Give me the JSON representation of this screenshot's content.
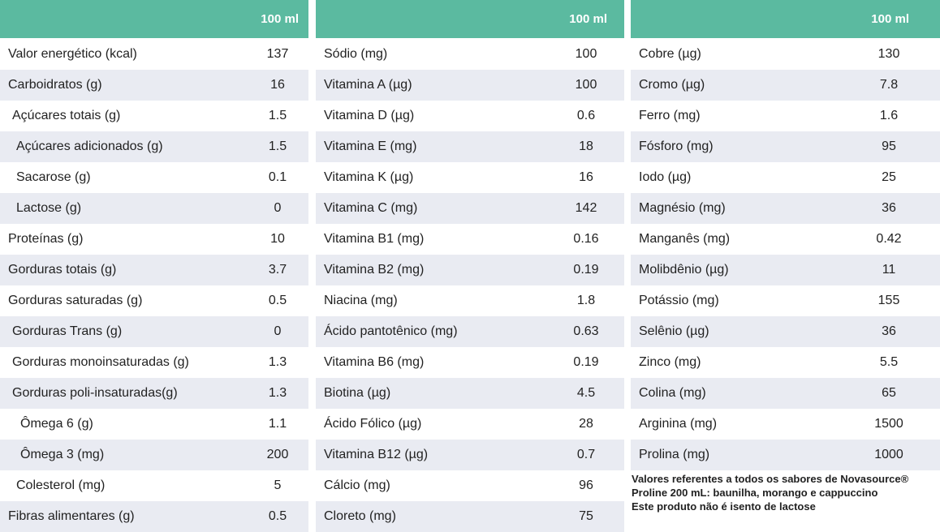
{
  "colors": {
    "header_bg": "#5bbaa0",
    "alt_row_bg": "#e9ebf2",
    "text": "#222222"
  },
  "header_label": "100 ml",
  "panels": [
    {
      "rows": [
        {
          "label": "Valor energético (kcal)",
          "value": "137"
        },
        {
          "label": "Carboidratos (g)",
          "value": "16"
        },
        {
          "label": "Açúcares totais (g)",
          "value": "1.5"
        },
        {
          "label": "Açúcares adicionados (g)",
          "value": "1.5"
        },
        {
          "label": "Sacarose (g)",
          "value": "0.1"
        },
        {
          "label": "Lactose (g)",
          "value": "0"
        },
        {
          "label": "Proteínas (g)",
          "value": "10"
        },
        {
          "label": "Gorduras totais (g)",
          "value": "3.7"
        },
        {
          "label": "Gorduras saturadas (g)",
          "value": "0.5"
        },
        {
          "label": "Gorduras Trans (g)",
          "value": "0"
        },
        {
          "label": "Gorduras monoinsaturadas (g)",
          "value": "1.3"
        },
        {
          "label": "Gorduras poli-insaturadas(g)",
          "value": "1.3"
        },
        {
          "label": "Ômega 6 (g)",
          "value": "1.1"
        },
        {
          "label": "Ômega 3 (mg)",
          "value": "200"
        },
        {
          "label": "Colesterol (mg)",
          "value": "5"
        },
        {
          "label": "Fibras alimentares (g)",
          "value": "0.5"
        }
      ]
    },
    {
      "rows": [
        {
          "label": "Sódio (mg)",
          "value": "100"
        },
        {
          "label": "Vitamina A (µg)",
          "value": "100"
        },
        {
          "label": "Vitamina D (µg)",
          "value": "0.6"
        },
        {
          "label": "Vitamina E (mg)",
          "value": "18"
        },
        {
          "label": "Vitamina K (µg)",
          "value": "16"
        },
        {
          "label": "Vitamina C (mg)",
          "value": "142"
        },
        {
          "label": "Vitamina B1 (mg)",
          "value": "0.16"
        },
        {
          "label": "Vitamina B2 (mg)",
          "value": "0.19"
        },
        {
          "label": "Niacina (mg)",
          "value": "1.8"
        },
        {
          "label": "Ácido pantotênico (mg)",
          "value": "0.63"
        },
        {
          "label": "Vitamina B6 (mg)",
          "value": "0.19"
        },
        {
          "label": "Biotina (µg)",
          "value": "4.5"
        },
        {
          "label": "Ácido Fólico (µg)",
          "value": "28"
        },
        {
          "label": "Vitamina B12 (µg)",
          "value": "0.7"
        },
        {
          "label": "Cálcio (mg)",
          "value": "96"
        },
        {
          "label": "Cloreto (mg)",
          "value": "75"
        }
      ]
    },
    {
      "rows": [
        {
          "label": "Cobre (µg)",
          "value": "130"
        },
        {
          "label": "Cromo (µg)",
          "value": "7.8"
        },
        {
          "label": "Ferro (mg)",
          "value": "1.6"
        },
        {
          "label": "Fósforo (mg)",
          "value": "95"
        },
        {
          "label": "Iodo (µg)",
          "value": "25"
        },
        {
          "label": "Magnésio (mg)",
          "value": "36"
        },
        {
          "label": "Manganês (mg)",
          "value": "0.42"
        },
        {
          "label": "Molibdênio (µg)",
          "value": "11"
        },
        {
          "label": "Potássio (mg)",
          "value": "155"
        },
        {
          "label": "Selênio (µg)",
          "value": "36"
        },
        {
          "label": "Zinco (mg)",
          "value": "5.5"
        },
        {
          "label": "Colina (mg)",
          "value": "65"
        },
        {
          "label": "Arginina (mg)",
          "value": "1500"
        },
        {
          "label": "Prolina (mg)",
          "value": "1000"
        }
      ]
    }
  ],
  "note": {
    "line1": "Valores referentes a todos os sabores de Novasource®",
    "line2": "Proline 200 mL: baunilha, morango e cappuccino",
    "line3": "Este produto não é isento de lactose"
  }
}
